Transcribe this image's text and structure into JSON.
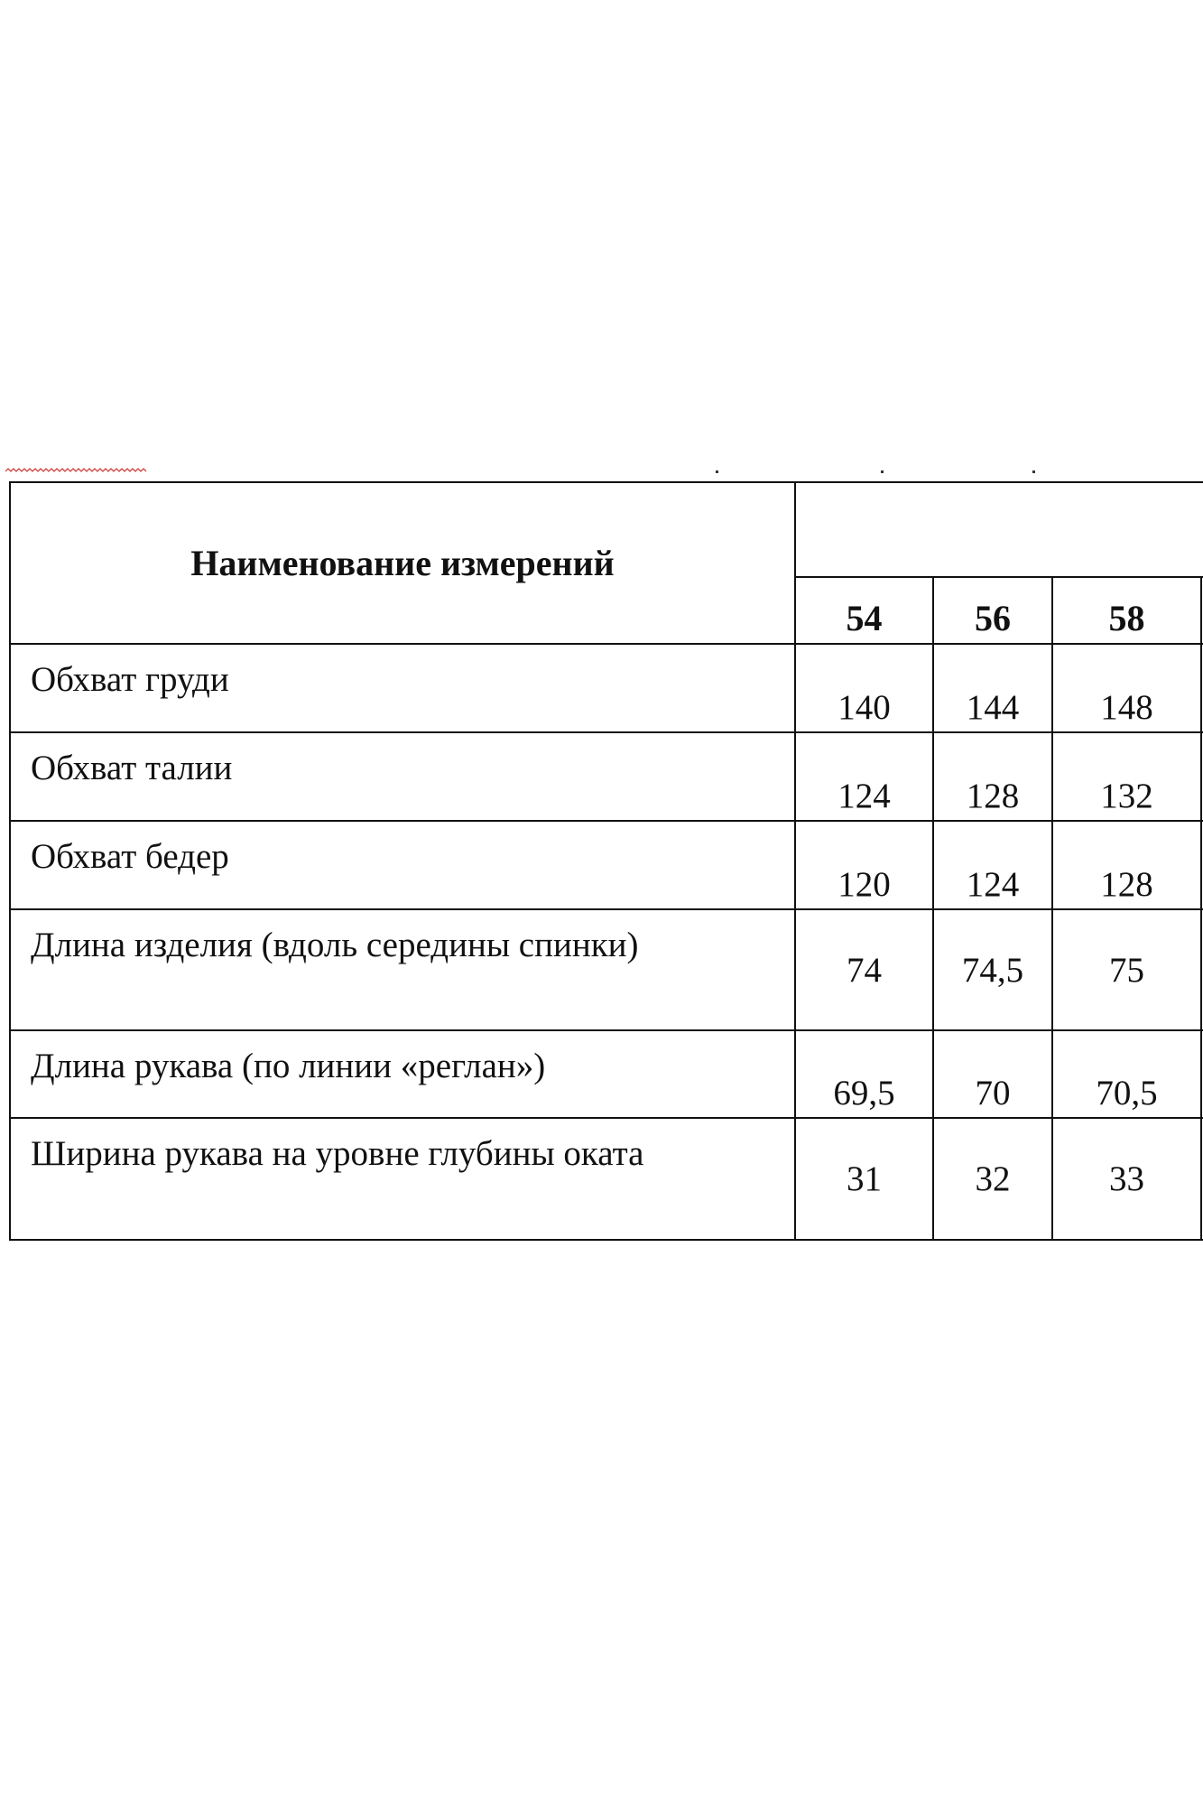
{
  "table": {
    "header": {
      "name_label": "Наименование измерений",
      "size_group_label": "",
      "sizes": [
        "54",
        "56",
        "58"
      ]
    },
    "rows": [
      {
        "label": "Обхват груди",
        "values": [
          "140",
          "144",
          "148"
        ]
      },
      {
        "label": "Обхват талии",
        "values": [
          "124",
          "128",
          "132"
        ]
      },
      {
        "label": "Обхват бедер",
        "values": [
          "120",
          "124",
          "128"
        ]
      },
      {
        "label": "Длина изделия (вдоль середины спинки)",
        "values": [
          "74",
          "74,5",
          "75"
        ]
      },
      {
        "label": "Длина рукава (по линии «реглан»)",
        "values": [
          "69,5",
          "70",
          "70,5"
        ]
      },
      {
        "label": "Ширина рукава на уровне глубины оката",
        "values": [
          "31",
          "32",
          "33"
        ]
      }
    ]
  },
  "colors": {
    "border": "#111111",
    "spellcheck_squiggle": "#d04040"
  }
}
